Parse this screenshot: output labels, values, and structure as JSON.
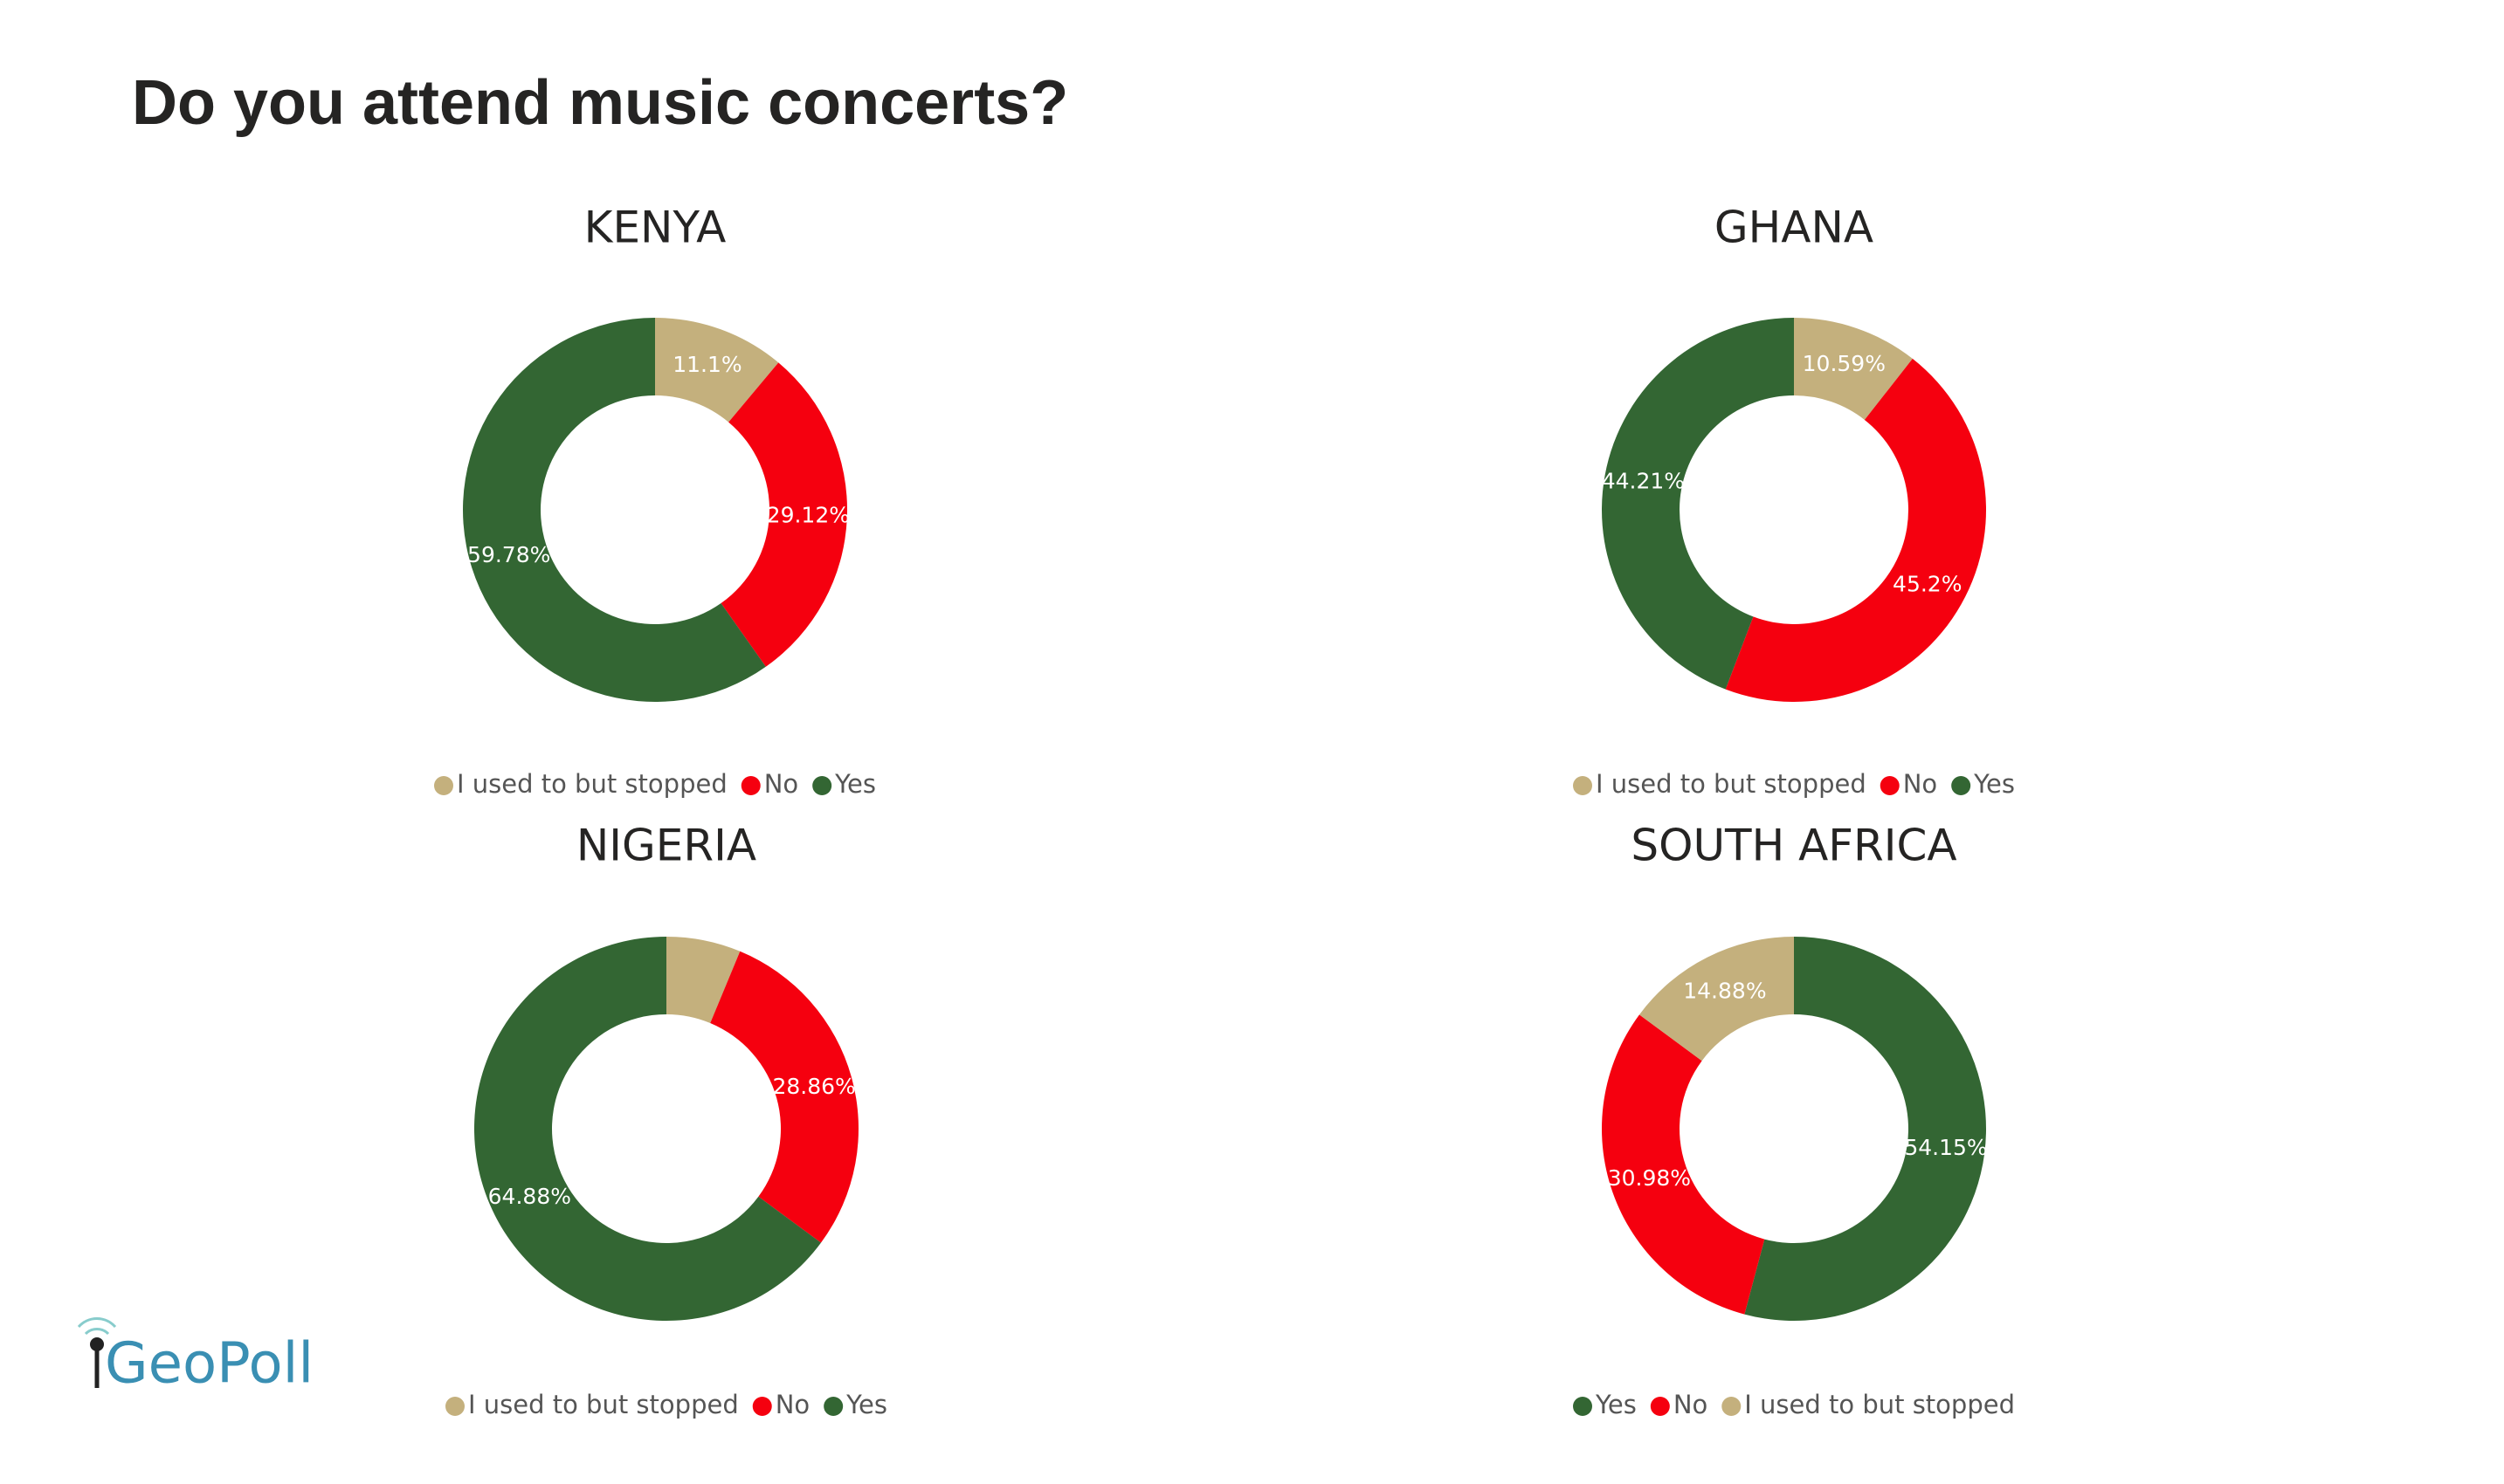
{
  "title": "Do you attend music concerts?",
  "logo": "GeoPoll",
  "chart_data": [
    {
      "type": "pie",
      "title": "KENYA",
      "categories": [
        "I used to but stopped",
        "No",
        "Yes"
      ],
      "values": [
        11.1,
        29.12,
        59.78
      ],
      "value_labels": [
        "11.1%",
        "29.12%",
        "59.78%"
      ],
      "colors": [
        "#c4b07d",
        "#f5000f",
        "#336633"
      ]
    },
    {
      "type": "pie",
      "title": "GHANA",
      "categories": [
        "I used to but stopped",
        "No",
        "Yes"
      ],
      "values": [
        10.59,
        45.2,
        44.21
      ],
      "value_labels": [
        "10.59%",
        "45.2%",
        "44.21%"
      ],
      "colors": [
        "#c4b07d",
        "#f5000f",
        "#336633"
      ]
    },
    {
      "type": "pie",
      "title": "NIGERIA",
      "categories": [
        "I used to but stopped",
        "No",
        "Yes"
      ],
      "values": [
        6.26,
        28.86,
        64.88
      ],
      "value_labels": [
        null,
        "28.86%",
        "64.88%"
      ],
      "colors": [
        "#c4b07d",
        "#f5000f",
        "#336633"
      ]
    },
    {
      "type": "pie",
      "title": "SOUTH AFRICA",
      "categories": [
        "Yes",
        "No",
        "I used to but stopped"
      ],
      "values": [
        54.15,
        30.98,
        14.88
      ],
      "value_labels": [
        "54.15%",
        "30.98%",
        "14.88%"
      ],
      "colors": [
        "#336633",
        "#f5000f",
        "#c4b07d"
      ]
    }
  ]
}
